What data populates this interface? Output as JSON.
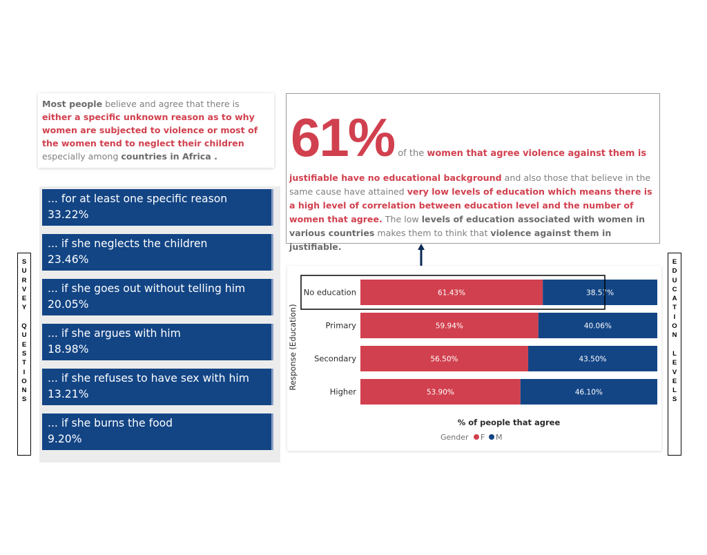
{
  "intro": {
    "p1": "Most people",
    "p2": " believe and agree that there is ",
    "p3": "either a specific unknown reason as to why women are subjected to violence or most of the women tend to neglect their children",
    "p4": " especially among ",
    "p5": "countries in Africa ."
  },
  "stat": {
    "big": "61%",
    "t1": "of the ",
    "t2": "women that agree violence against them is",
    "s1": "justifiable have no educational background",
    "s2": " and also those that believe in the same cause have attained ",
    "s3": "very low levels of education which means there is a high level of correlation between education level and the number of women that agree.",
    "s4": " The low ",
    "s5": "levels of education associated with women in various countries",
    "s6": " makes them to think that ",
    "s7": "violence against them in justifiable."
  },
  "side_labels": {
    "survey": "SURVEY QUESTIONS",
    "education": "EDUCATION LEVELS"
  },
  "survey": [
    {
      "question": "... for at least one specific reason",
      "pct": "33.22%"
    },
    {
      "question": "... if she neglects the children",
      "pct": "23.46%"
    },
    {
      "question": "... if she goes out without telling him",
      "pct": "20.05%"
    },
    {
      "question": "... if she argues with him",
      "pct": "18.98%"
    },
    {
      "question": "... if she refuses to have sex with him",
      "pct": "13.21%"
    },
    {
      "question": "... if she burns the food",
      "pct": "9.20%"
    }
  ],
  "chart_data": {
    "type": "bar",
    "orientation": "horizontal",
    "stacked": "100%",
    "categories": [
      "No education",
      "Primary",
      "Secondary",
      "Higher"
    ],
    "series": [
      {
        "name": "F",
        "color": "#d1404e",
        "values": [
          61.43,
          59.94,
          56.5,
          53.9
        ]
      },
      {
        "name": "M",
        "color": "#134585",
        "values": [
          38.57,
          40.06,
          43.5,
          46.1
        ]
      }
    ],
    "value_labels": {
      "F": [
        "61.43%",
        "59.94%",
        "56.50%",
        "53.90%"
      ],
      "M": [
        "38.57%",
        "40.06%",
        "43.50%",
        "46.10%"
      ]
    },
    "xlabel": "% of people that agree",
    "ylabel": "Response (Education)",
    "legend_title": "Gender",
    "legend_position": "bottom",
    "highlighted_category": "No education",
    "xlim": [
      0,
      100
    ]
  }
}
